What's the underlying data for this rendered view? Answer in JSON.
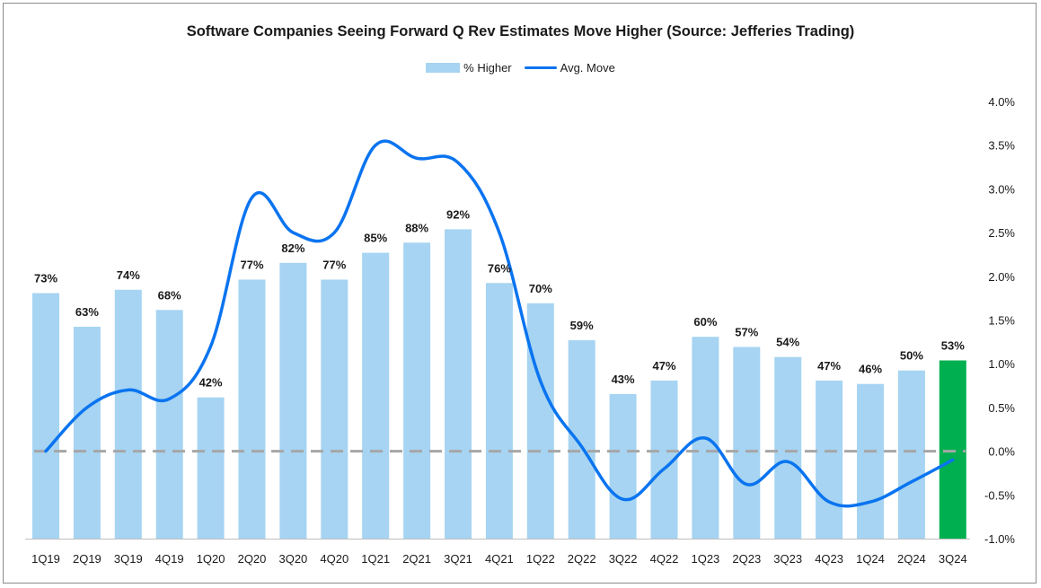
{
  "chart_data": {
    "type": "bar",
    "title": "Software Companies Seeing Forward Q Rev Estimates Move Higher (Source: Jefferies Trading)",
    "categories": [
      "1Q19",
      "2Q19",
      "3Q19",
      "4Q19",
      "1Q20",
      "2Q20",
      "3Q20",
      "4Q20",
      "1Q21",
      "2Q21",
      "3Q21",
      "4Q21",
      "1Q22",
      "2Q22",
      "3Q22",
      "4Q22",
      "1Q23",
      "2Q23",
      "3Q23",
      "4Q23",
      "1Q24",
      "2Q24",
      "3Q24"
    ],
    "series": [
      {
        "name": "% Higher",
        "type": "bar",
        "axis": "left",
        "values": [
          73,
          63,
          74,
          68,
          42,
          77,
          82,
          77,
          85,
          88,
          92,
          76,
          70,
          59,
          43,
          47,
          60,
          57,
          54,
          47,
          46,
          50,
          53
        ],
        "labels": [
          "73%",
          "63%",
          "74%",
          "68%",
          "42%",
          "77%",
          "82%",
          "77%",
          "85%",
          "88%",
          "92%",
          "76%",
          "70%",
          "59%",
          "43%",
          "47%",
          "60%",
          "57%",
          "54%",
          "47%",
          "46%",
          "50%",
          "53%"
        ],
        "color": "#a6d4f2",
        "highlight_color": "#00b050",
        "highlight_index": 22
      },
      {
        "name": "Avg. Move",
        "type": "line",
        "axis": "right",
        "values": [
          0.0,
          0.5,
          0.7,
          0.6,
          1.2,
          2.9,
          2.5,
          2.5,
          3.5,
          3.35,
          3.3,
          2.5,
          0.8,
          0.05,
          -0.55,
          -0.2,
          0.15,
          -0.38,
          -0.12,
          -0.58,
          -0.58,
          -0.35,
          -0.1
        ],
        "color": "#0a74f0"
      }
    ],
    "yaxis_left": {
      "range": [
        0,
        130
      ],
      "visible": false
    },
    "yaxis_right": {
      "range": [
        -1.0,
        4.0
      ],
      "ticks": [
        4.0,
        3.5,
        3.0,
        2.5,
        2.0,
        1.5,
        1.0,
        0.5,
        0.0,
        -0.5,
        -1.0
      ],
      "tick_labels": [
        "4.0%",
        "3.5%",
        "3.0%",
        "2.5%",
        "2.0%",
        "1.5%",
        "1.0%",
        "0.5%",
        "0.0%",
        "-0.5%",
        "-1.0%"
      ]
    },
    "reference_line": {
      "value": 0.0,
      "axis": "right",
      "style": "dashed",
      "color": "#a6a6a6"
    },
    "grid": false,
    "legend_position": "top-center"
  }
}
